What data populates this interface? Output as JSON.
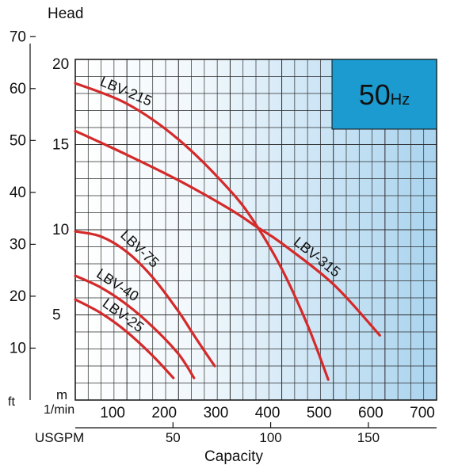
{
  "chart_data": {
    "type": "line",
    "title": "",
    "badge": {
      "value": "50",
      "unit": "Hz",
      "color": "#1b9bd0"
    },
    "ylabel": "Head",
    "xlabel": "Capacity",
    "x_unit_primary": "1/min",
    "x_unit_secondary": "USGPM",
    "y_unit_metric": "m",
    "y_unit_imperial": "ft",
    "xlim": [
      0,
      700
    ],
    "ylim": [
      0,
      20
    ],
    "x_ticks": [
      "100",
      "200",
      "300",
      "400",
      "500",
      "600",
      "700"
    ],
    "x_ticks_usgpm": [
      {
        "label": "50",
        "at_lpm": 189.3
      },
      {
        "label": "100",
        "at_lpm": 378.5
      },
      {
        "label": "150",
        "at_lpm": 567.8
      }
    ],
    "y_ticks_m": [
      "5",
      "10",
      "15",
      "20"
    ],
    "y_ticks_ft": [
      "10",
      "20",
      "30",
      "40",
      "50",
      "60",
      "70"
    ],
    "grid": true,
    "curve_color": "#d42a2a",
    "series": [
      {
        "name": "LBV-215",
        "x": [
          0,
          100,
          200,
          300,
          350,
          400,
          450,
          490
        ],
        "y": [
          18.6,
          17.4,
          15.3,
          12.3,
          10.3,
          7.7,
          4.4,
          1.2
        ]
      },
      {
        "name": "LBV-315",
        "x": [
          0,
          100,
          200,
          300,
          350,
          400,
          500,
          590
        ],
        "y": [
          15.8,
          14.4,
          12.9,
          11.2,
          10.2,
          9.2,
          6.8,
          3.8
        ]
      },
      {
        "name": "LBV-75",
        "x": [
          0,
          50,
          100,
          150,
          200,
          230,
          270
        ],
        "y": [
          9.9,
          9.6,
          8.7,
          7.2,
          5.2,
          3.8,
          2.0
        ]
      },
      {
        "name": "LBV-40",
        "x": [
          0,
          50,
          100,
          150,
          200,
          230
        ],
        "y": [
          7.3,
          6.6,
          5.6,
          4.3,
          2.7,
          1.3
        ]
      },
      {
        "name": "LBV-25",
        "x": [
          0,
          50,
          100,
          150,
          190
        ],
        "y": [
          5.9,
          5.1,
          4.0,
          2.6,
          1.3
        ]
      }
    ],
    "annotations": [
      {
        "text": "LBV-215",
        "series": "LBV-215"
      },
      {
        "text": "LBV-315",
        "series": "LBV-315"
      },
      {
        "text": "LBV-75",
        "series": "LBV-75"
      },
      {
        "text": "LBV-40",
        "series": "LBV-40"
      },
      {
        "text": "LBV-25",
        "series": "LBV-25"
      }
    ]
  }
}
